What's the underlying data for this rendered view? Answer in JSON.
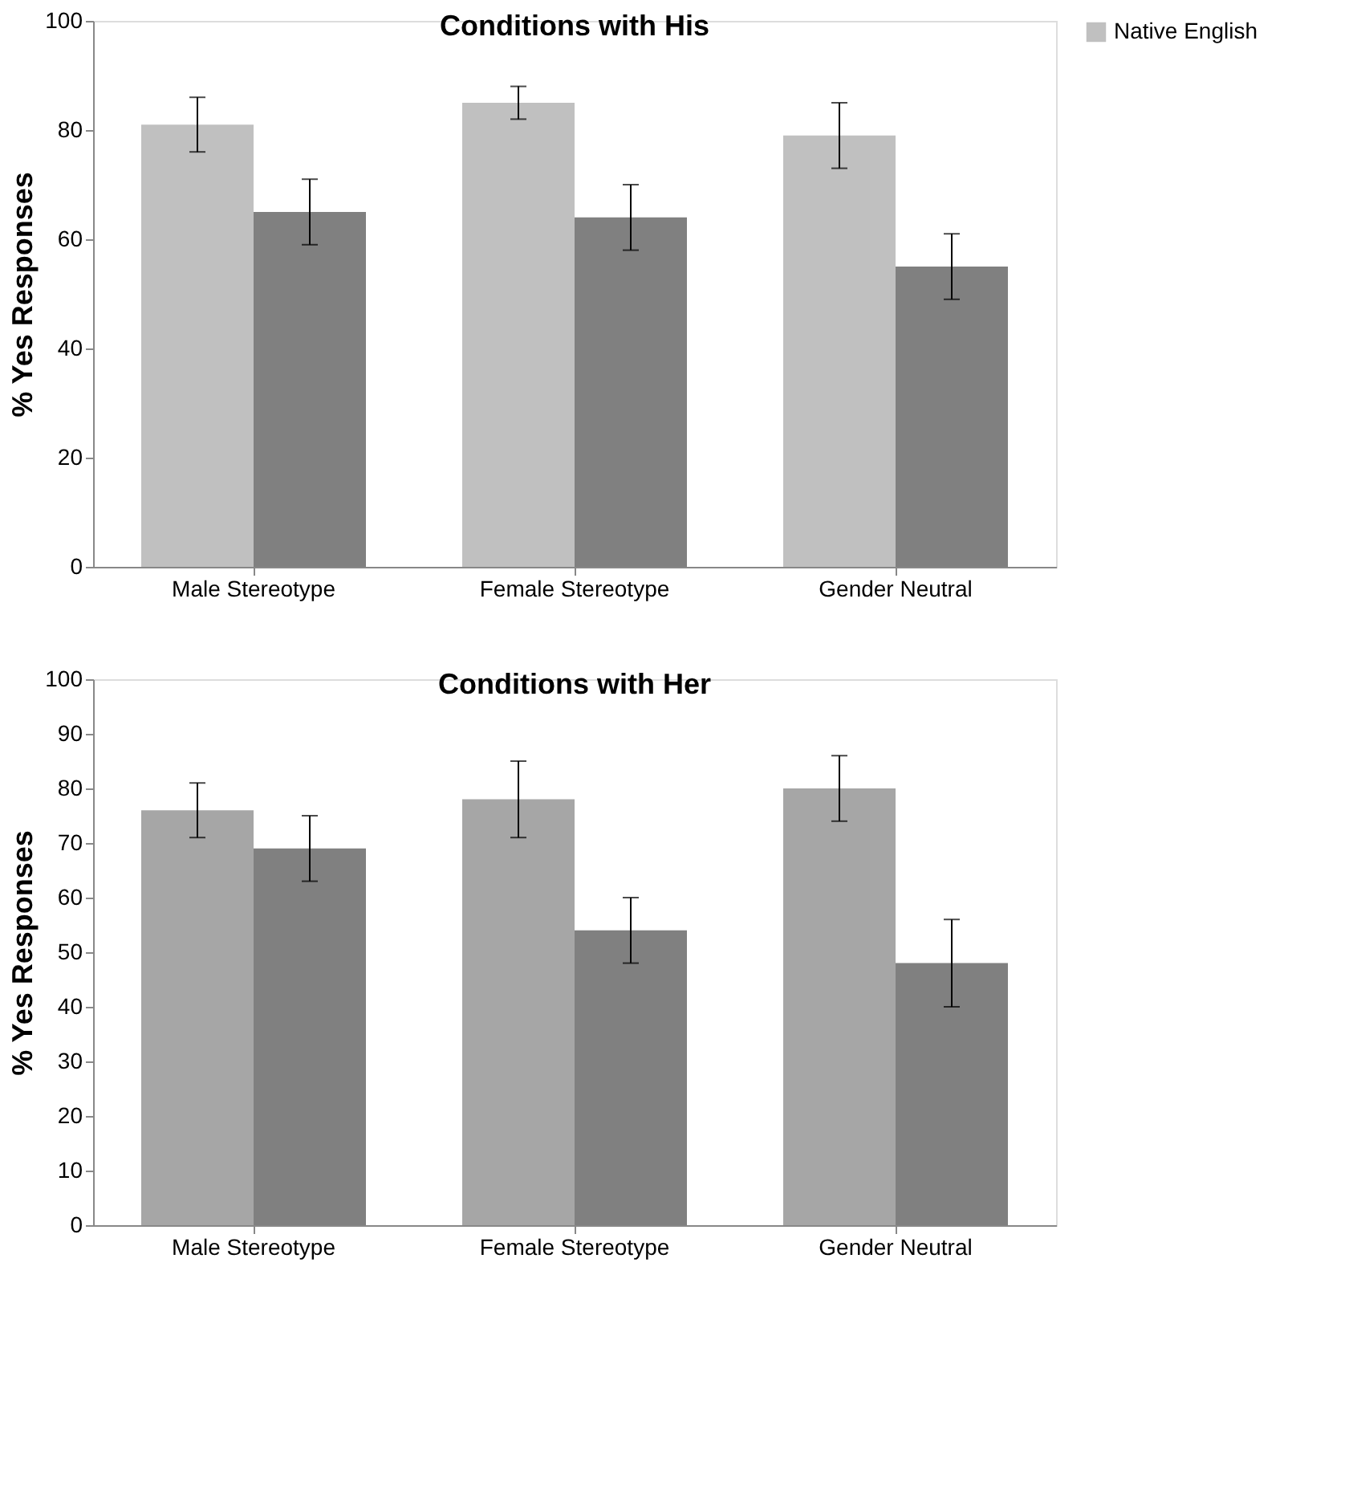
{
  "chart_data": [
    {
      "type": "bar",
      "title": "Conditions with His",
      "ylabel": "% Yes Responses",
      "categories": [
        "Male Stereotype",
        "Female Stereotype",
        "Gender Neutral"
      ],
      "ylim": [
        0,
        100
      ],
      "yticks": [
        0,
        20,
        40,
        60,
        80,
        100
      ],
      "grid": false,
      "legend": "top right",
      "series": [
        {
          "name": "Native English",
          "color": "#c0c0c0",
          "values": [
            81,
            85,
            79
          ],
          "errors": [
            5,
            3,
            6
          ]
        },
        {
          "color": "#808080",
          "values": [
            65,
            64,
            55
          ],
          "errors": [
            6,
            6,
            6
          ]
        }
      ]
    },
    {
      "type": "bar",
      "title": "Conditions with Her",
      "ylabel": "% Yes Responses",
      "categories": [
        "Male Stereotype",
        "Female Stereotype",
        "Gender Neutral"
      ],
      "ylim": [
        0,
        100
      ],
      "yticks": [
        0,
        10,
        20,
        30,
        40,
        50,
        60,
        70,
        80,
        90,
        100
      ],
      "grid": false,
      "legend": false,
      "series": [
        {
          "color": "#a6a6a6",
          "values": [
            76,
            78,
            80
          ],
          "errors": [
            5,
            7,
            6
          ]
        },
        {
          "color": "#808080",
          "values": [
            69,
            54,
            48
          ],
          "errors": [
            6,
            6,
            8
          ]
        }
      ]
    }
  ]
}
